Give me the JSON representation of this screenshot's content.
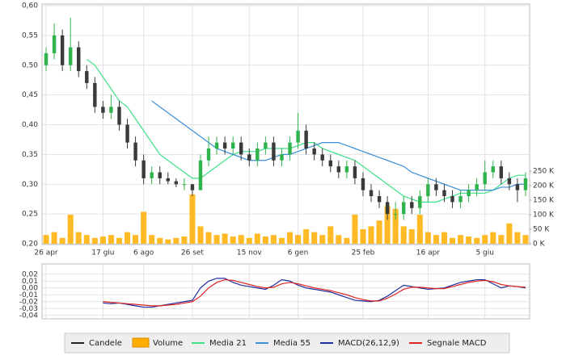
{
  "chart_data": [
    {
      "type": "candlestick",
      "categories": [
        "26 apr",
        null,
        null,
        null,
        null,
        null,
        null,
        "17 giu",
        null,
        null,
        null,
        null,
        "6 ago",
        null,
        null,
        null,
        null,
        null,
        "26 set",
        null,
        null,
        null,
        null,
        null,
        null,
        "15 nov",
        null,
        null,
        null,
        null,
        null,
        "6 gen",
        null,
        null,
        null,
        null,
        null,
        null,
        null,
        "25 feb",
        null,
        null,
        null,
        null,
        null,
        null,
        null,
        "16 apr",
        null,
        null,
        null,
        null,
        null,
        null,
        "5 giu",
        null,
        null,
        null,
        null,
        null
      ],
      "candles": {
        "name": "Candele",
        "color": "#222222",
        "up_color": "#2fb34c",
        "down_color": "#3a3a3a",
        "open": [
          0.5,
          0.52,
          0.55,
          0.5,
          0.53,
          0.49,
          0.47,
          0.43,
          0.42,
          0.43,
          0.4,
          0.37,
          0.34,
          0.31,
          0.32,
          0.31,
          0.305,
          0.3,
          0.3,
          0.29,
          0.34,
          0.36,
          0.37,
          0.36,
          0.37,
          0.35,
          0.34,
          0.36,
          0.37,
          0.34,
          0.35,
          0.37,
          0.39,
          0.36,
          0.35,
          0.34,
          0.33,
          0.32,
          0.33,
          0.31,
          0.29,
          0.28,
          0.27,
          0.25,
          0.25,
          0.27,
          0.26,
          0.28,
          0.3,
          0.29,
          0.28,
          0.27,
          0.28,
          0.29,
          0.3,
          0.32,
          0.33,
          0.31,
          0.3,
          0.29
        ],
        "high": [
          0.53,
          0.57,
          0.56,
          0.58,
          0.54,
          0.5,
          0.48,
          0.44,
          0.45,
          0.44,
          0.41,
          0.38,
          0.35,
          0.33,
          0.33,
          0.32,
          0.31,
          0.31,
          0.3,
          0.35,
          0.38,
          0.38,
          0.38,
          0.38,
          0.38,
          0.36,
          0.37,
          0.38,
          0.38,
          0.36,
          0.38,
          0.42,
          0.4,
          0.37,
          0.36,
          0.35,
          0.34,
          0.34,
          0.34,
          0.32,
          0.3,
          0.29,
          0.28,
          0.27,
          0.28,
          0.28,
          0.29,
          0.31,
          0.31,
          0.3,
          0.29,
          0.29,
          0.3,
          0.31,
          0.34,
          0.34,
          0.34,
          0.32,
          0.31,
          0.32
        ],
        "low": [
          0.49,
          0.51,
          0.49,
          0.49,
          0.48,
          0.46,
          0.42,
          0.41,
          0.41,
          0.39,
          0.36,
          0.33,
          0.3,
          0.3,
          0.3,
          0.3,
          0.295,
          0.29,
          0.28,
          0.29,
          0.33,
          0.35,
          0.35,
          0.35,
          0.34,
          0.33,
          0.33,
          0.35,
          0.33,
          0.33,
          0.34,
          0.36,
          0.35,
          0.34,
          0.33,
          0.32,
          0.31,
          0.31,
          0.3,
          0.28,
          0.27,
          0.26,
          0.24,
          0.24,
          0.24,
          0.25,
          0.25,
          0.27,
          0.28,
          0.27,
          0.26,
          0.26,
          0.27,
          0.28,
          0.29,
          0.31,
          0.3,
          0.29,
          0.27,
          0.28
        ],
        "close": [
          0.52,
          0.55,
          0.5,
          0.53,
          0.49,
          0.47,
          0.43,
          0.42,
          0.43,
          0.4,
          0.37,
          0.34,
          0.31,
          0.32,
          0.31,
          0.305,
          0.3,
          0.3,
          0.29,
          0.34,
          0.36,
          0.37,
          0.36,
          0.37,
          0.35,
          0.34,
          0.36,
          0.37,
          0.34,
          0.35,
          0.37,
          0.39,
          0.36,
          0.35,
          0.34,
          0.33,
          0.32,
          0.33,
          0.31,
          0.29,
          0.28,
          0.27,
          0.25,
          0.25,
          0.27,
          0.26,
          0.28,
          0.3,
          0.29,
          0.28,
          0.27,
          0.28,
          0.29,
          0.3,
          0.32,
          0.33,
          0.31,
          0.3,
          0.29,
          0.31
        ]
      },
      "volume": {
        "name": "Volume",
        "color": "#ffae00",
        "axis": "y2",
        "values": [
          30000,
          40000,
          20000,
          100000,
          40000,
          30000,
          20000,
          25000,
          30000,
          20000,
          40000,
          30000,
          110000,
          30000,
          20000,
          15000,
          20000,
          25000,
          170000,
          60000,
          40000,
          30000,
          35000,
          25000,
          30000,
          20000,
          35000,
          25000,
          30000,
          20000,
          40000,
          30000,
          50000,
          40000,
          30000,
          60000,
          30000,
          20000,
          100000,
          50000,
          60000,
          80000,
          130000,
          120000,
          60000,
          50000,
          100000,
          40000,
          30000,
          40000,
          20000,
          30000,
          25000,
          20000,
          30000,
          40000,
          30000,
          70000,
          40000,
          30000
        ]
      },
      "series": [
        {
          "name": "Media 21",
          "color": "#3fe08a",
          "values": [
            null,
            null,
            null,
            null,
            null,
            0.51,
            0.5,
            0.48,
            0.46,
            0.44,
            0.43,
            0.41,
            0.39,
            0.37,
            0.35,
            0.34,
            0.33,
            0.32,
            0.31,
            0.31,
            0.32,
            0.33,
            0.34,
            0.35,
            0.355,
            0.355,
            0.355,
            0.36,
            0.36,
            0.36,
            0.36,
            0.365,
            0.37,
            0.37,
            0.36,
            0.355,
            0.35,
            0.345,
            0.34,
            0.33,
            0.32,
            0.31,
            0.3,
            0.29,
            0.28,
            0.275,
            0.27,
            0.27,
            0.27,
            0.275,
            0.28,
            0.285,
            0.285,
            0.285,
            0.285,
            0.29,
            0.3,
            0.31,
            0.315,
            0.315
          ]
        },
        {
          "name": "Media 55",
          "color": "#3a8fd8",
          "values": [
            null,
            null,
            null,
            null,
            null,
            null,
            null,
            null,
            null,
            null,
            null,
            null,
            null,
            0.44,
            0.43,
            0.42,
            0.41,
            0.4,
            0.39,
            0.38,
            0.37,
            0.36,
            0.355,
            0.35,
            0.345,
            0.34,
            0.34,
            0.34,
            0.345,
            0.35,
            0.35,
            0.355,
            0.36,
            0.365,
            0.37,
            0.37,
            0.37,
            0.365,
            0.36,
            0.355,
            0.35,
            0.345,
            0.34,
            0.335,
            0.33,
            0.32,
            0.315,
            0.31,
            0.305,
            0.3,
            0.295,
            0.29,
            0.29,
            0.29,
            0.29,
            0.29,
            0.295,
            0.295,
            0.3,
            0.3
          ]
        }
      ],
      "ylim": [
        0.2,
        0.6
      ],
      "yticks": [
        {
          "value": 0.6,
          "label": "0,60"
        },
        {
          "value": 0.55,
          "label": "0,55"
        },
        {
          "value": 0.5,
          "label": "0,50"
        },
        {
          "value": 0.45,
          "label": "0,45"
        },
        {
          "value": 0.4,
          "label": "0,40"
        },
        {
          "value": 0.35,
          "label": "0,35"
        },
        {
          "value": 0.3,
          "label": "0,30"
        },
        {
          "value": 0.25,
          "label": "0,25"
        },
        {
          "value": 0.2,
          "label": "0,20"
        }
      ],
      "y2lim": [
        0,
        820000
      ],
      "y2ticks": [
        {
          "value": 250000,
          "label": "250 K"
        },
        {
          "value": 200000,
          "label": "200 K"
        },
        {
          "value": 150000,
          "label": "150 K"
        },
        {
          "value": 100000,
          "label": "100 K"
        },
        {
          "value": 50000,
          "label": "50 K"
        },
        {
          "value": 0,
          "label": "0 K"
        }
      ],
      "grid": true
    },
    {
      "type": "line",
      "series": [
        {
          "name": "MACD(26,12,9)",
          "color": "#1f2c9c",
          "values": [
            null,
            null,
            null,
            null,
            null,
            null,
            null,
            -0.022,
            -0.023,
            -0.022,
            -0.024,
            -0.026,
            -0.028,
            -0.028,
            -0.026,
            -0.024,
            -0.022,
            -0.02,
            -0.018,
            0.0,
            0.01,
            0.014,
            0.014,
            0.008,
            0.004,
            0.002,
            0.0,
            -0.002,
            0.004,
            0.012,
            0.01,
            0.004,
            0.0,
            -0.002,
            -0.004,
            -0.006,
            -0.01,
            -0.014,
            -0.018,
            -0.019,
            -0.02,
            -0.018,
            -0.012,
            -0.004,
            0.004,
            0.002,
            0.0,
            -0.002,
            -0.001,
            0.0,
            0.004,
            0.008,
            0.01,
            0.012,
            0.012,
            0.006,
            0.0,
            0.003,
            0.002,
            0.0
          ]
        },
        {
          "name": "Segnale MACD",
          "color": "#e02424",
          "values": [
            null,
            null,
            null,
            null,
            null,
            null,
            null,
            -0.02,
            -0.021,
            -0.022,
            -0.023,
            -0.024,
            -0.025,
            -0.026,
            -0.026,
            -0.025,
            -0.024,
            -0.022,
            -0.02,
            -0.012,
            0.0,
            0.008,
            0.012,
            0.011,
            0.008,
            0.005,
            0.002,
            0.0,
            0.001,
            0.006,
            0.008,
            0.006,
            0.003,
            0.0,
            -0.002,
            -0.004,
            -0.007,
            -0.01,
            -0.014,
            -0.017,
            -0.019,
            -0.019,
            -0.015,
            -0.009,
            -0.002,
            0.001,
            0.001,
            0.0,
            -0.001,
            -0.001,
            0.002,
            0.005,
            0.008,
            0.01,
            0.011,
            0.009,
            0.005,
            0.003,
            0.002,
            0.001
          ]
        }
      ],
      "ylim": [
        -0.045,
        0.035
      ],
      "yticks": [
        {
          "value": 0.02,
          "label": "0,02"
        },
        {
          "value": 0.01,
          "label": "0,01"
        },
        {
          "value": 0,
          "label": "0,00"
        },
        {
          "value": -0.01,
          "label": "-0,01"
        },
        {
          "value": -0.02,
          "label": "-0,02"
        },
        {
          "value": -0.03,
          "label": "-0,03"
        },
        {
          "value": -0.04,
          "label": "-0,04"
        }
      ],
      "grid": true
    }
  ]
}
